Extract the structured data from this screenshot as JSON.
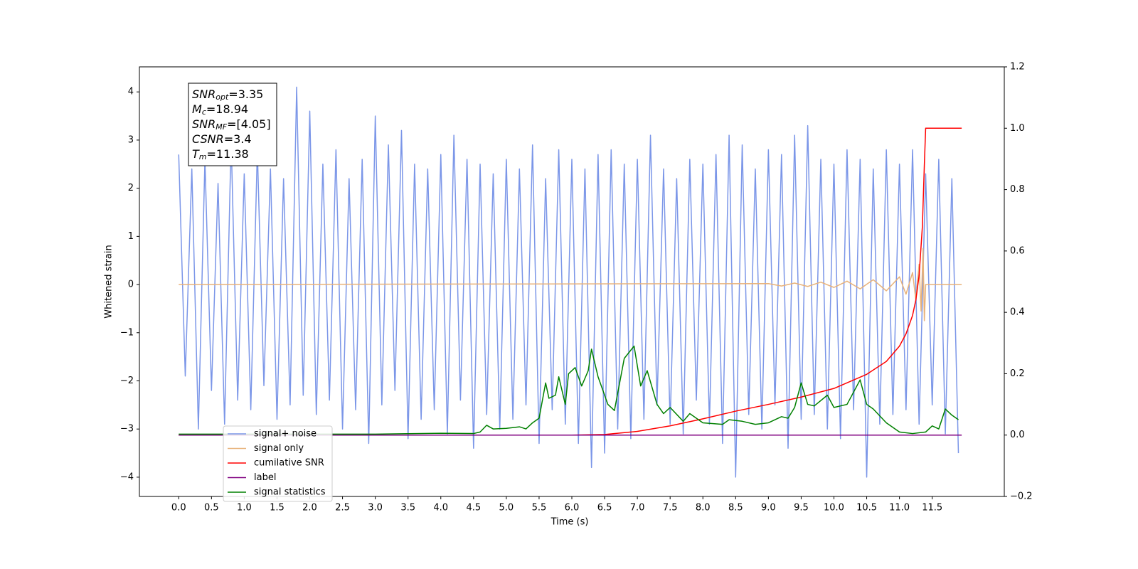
{
  "chart_data": {
    "type": "line",
    "xlabel": "Time (s)",
    "ylabel": "Whitened strain",
    "xlim": [
      -0.6,
      12.6
    ],
    "ylim": [
      -4.4,
      4.52
    ],
    "y2lim": [
      -0.2,
      1.2
    ],
    "xticks": [
      {
        "value": 0,
        "label": "0.0"
      },
      0.5,
      {
        "value": 1,
        "label": "1.0"
      },
      1.5,
      {
        "value": 2,
        "label": "2.0"
      },
      2.5,
      {
        "value": 3,
        "label": "3.0"
      },
      3.5,
      {
        "value": 4,
        "label": "4.0"
      },
      4.5,
      {
        "value": 5,
        "label": "5.0"
      },
      5.5,
      {
        "value": 6,
        "label": "6.0"
      },
      6.5,
      {
        "value": 7,
        "label": "7.0"
      },
      7.5,
      {
        "value": 8,
        "label": "8.0"
      },
      8.5,
      {
        "value": 9,
        "label": "9.0"
      },
      9.5,
      {
        "value": 10,
        "label": "10.0"
      },
      10.5,
      {
        "value": 11,
        "label": "11.0"
      },
      11.5
    ],
    "yticks": [
      {
        "value": -4,
        "label": "−4"
      },
      {
        "value": -3,
        "label": "−3"
      },
      {
        "value": -2,
        "label": "−2"
      },
      {
        "value": -1,
        "label": "−1"
      },
      0,
      1,
      2,
      3,
      4
    ],
    "y2ticks": [
      {
        "value": -0.2,
        "label": "−0.2"
      },
      {
        "value": 0,
        "label": "0.0"
      },
      0.2,
      0.4,
      0.6,
      0.8,
      {
        "value": 1,
        "label": "1.0"
      },
      1.2
    ],
    "annotation": [
      {
        "symbol": "SNR",
        "subscript": "opt",
        "text": "=3.35"
      },
      {
        "symbol": "M",
        "subscript": "c",
        "text": "=18.94"
      },
      {
        "symbol": "SNR",
        "subscript": "MF",
        "text": "=[4.05]"
      },
      {
        "symbol": "CSNR",
        "text": "=3.4"
      },
      {
        "symbol": "T",
        "subscript": "m",
        "text": "=11.38"
      }
    ],
    "series": [
      {
        "name": "signal+ noise",
        "color": "#7b96e8",
        "x": [
          0,
          0.1,
          0.2,
          0.3,
          0.4,
          0.5,
          0.6,
          0.7,
          0.8,
          0.9,
          1,
          1.1,
          1.2,
          1.3,
          1.4,
          1.5,
          1.6,
          1.7,
          1.8,
          1.9,
          2,
          2.1,
          2.2,
          2.3,
          2.4,
          2.5,
          2.6,
          2.7,
          2.8,
          2.9,
          3,
          3.1,
          3.2,
          3.3,
          3.4,
          3.5,
          3.6,
          3.7,
          3.8,
          3.9,
          4,
          4.1,
          4.2,
          4.3,
          4.4,
          4.5,
          4.6,
          4.7,
          4.8,
          4.9,
          5,
          5.1,
          5.2,
          5.3,
          5.4,
          5.5,
          5.6,
          5.7,
          5.8,
          5.9,
          6,
          6.1,
          6.2,
          6.3,
          6.4,
          6.5,
          6.6,
          6.7,
          6.8,
          6.9,
          7,
          7.1,
          7.2,
          7.3,
          7.4,
          7.5,
          7.6,
          7.7,
          7.8,
          7.9,
          8,
          8.1,
          8.2,
          8.3,
          8.4,
          8.5,
          8.6,
          8.7,
          8.8,
          8.9,
          9,
          9.1,
          9.2,
          9.3,
          9.4,
          9.5,
          9.6,
          9.7,
          9.8,
          9.9,
          10,
          10.1,
          10.2,
          10.3,
          10.4,
          10.5,
          10.6,
          10.7,
          10.8,
          10.9,
          11,
          11.1,
          11.2,
          11.3,
          11.4,
          11.5,
          11.6,
          11.7,
          11.8,
          11.9
        ],
        "values": [
          2.7,
          -1.9,
          2.4,
          -3.0,
          2.6,
          -2.2,
          2.1,
          -2.9,
          3.0,
          -2.4,
          2.3,
          -2.6,
          2.8,
          -2.1,
          2.4,
          -2.8,
          2.2,
          -2.5,
          4.1,
          -2.3,
          3.6,
          -2.7,
          2.5,
          -2.4,
          2.8,
          -3.0,
          2.2,
          -2.6,
          2.6,
          -3.3,
          3.5,
          -2.5,
          2.9,
          -2.2,
          3.2,
          -3.2,
          2.5,
          -2.8,
          2.4,
          -2.6,
          2.7,
          -3.1,
          3.1,
          -2.4,
          2.6,
          -3.4,
          2.5,
          -2.7,
          2.3,
          -3.0,
          2.6,
          -2.8,
          2.4,
          -2.5,
          2.9,
          -3.3,
          2.2,
          -2.6,
          2.8,
          -2.9,
          2.6,
          -3.3,
          2.4,
          -3.8,
          2.7,
          -3.5,
          2.8,
          -3.0,
          2.5,
          -3.2,
          2.6,
          -2.8,
          3.1,
          -2.5,
          2.4,
          -2.9,
          2.2,
          -3.1,
          2.6,
          -2.4,
          2.5,
          -2.9,
          2.7,
          -3.3,
          3.1,
          -4.0,
          2.9,
          -2.7,
          2.4,
          -3.0,
          2.8,
          -2.5,
          2.7,
          -3.4,
          3.1,
          -2.8,
          3.3,
          -2.7,
          2.6,
          -3.0,
          2.5,
          -3.2,
          2.8,
          -2.6,
          2.6,
          -4.0,
          2.4,
          -2.9,
          2.8,
          -2.7,
          2.5,
          -2.6,
          2.8,
          -2.9,
          2.3,
          -2.5,
          2.6,
          -3.1,
          2.2,
          -3.5
        ]
      },
      {
        "name": "signal only",
        "color": "#e8b27a",
        "x": [
          0,
          9.0,
          9.2,
          9.4,
          9.6,
          9.8,
          10.0,
          10.2,
          10.4,
          10.6,
          10.8,
          11.0,
          11.1,
          11.2,
          11.25,
          11.3,
          11.33,
          11.36,
          11.38,
          11.4,
          11.95
        ],
        "values": [
          0,
          0.02,
          -0.03,
          0.03,
          -0.04,
          0.05,
          -0.06,
          0.07,
          -0.09,
          0.1,
          -0.13,
          0.16,
          -0.2,
          0.25,
          -0.32,
          0.42,
          -0.55,
          0.75,
          -0.75,
          0,
          0
        ]
      },
      {
        "name": "cumilative SNR",
        "color": "#ff0000",
        "axis": "y2",
        "x": [
          0,
          6.0,
          6.5,
          7.0,
          7.5,
          8.0,
          8.5,
          9.0,
          9.5,
          10.0,
          10.5,
          10.8,
          11.0,
          11.1,
          11.2,
          11.25,
          11.3,
          11.35,
          11.38,
          11.4,
          11.95
        ],
        "values": [
          0,
          0,
          0.002,
          0.012,
          0.03,
          0.053,
          0.078,
          0.1,
          0.124,
          0.152,
          0.198,
          0.24,
          0.29,
          0.33,
          0.39,
          0.44,
          0.52,
          0.68,
          0.88,
          1.0,
          1.0
        ]
      },
      {
        "name": "label",
        "color": "#800080",
        "axis": "y2",
        "x": [
          0,
          11.95
        ],
        "values": [
          0,
          0
        ]
      },
      {
        "name": "signal statistics",
        "color": "#008000",
        "axis": "y2",
        "x": [
          0,
          1,
          2,
          3,
          4,
          4.5,
          4.6,
          4.7,
          4.8,
          5.0,
          5.2,
          5.3,
          5.4,
          5.5,
          5.6,
          5.65,
          5.75,
          5.8,
          5.9,
          5.95,
          6.05,
          6.15,
          6.25,
          6.3,
          6.4,
          6.55,
          6.65,
          6.8,
          6.95,
          7.05,
          7.15,
          7.3,
          7.4,
          7.5,
          7.7,
          7.8,
          8.0,
          8.3,
          8.4,
          8.6,
          8.8,
          9.0,
          9.2,
          9.3,
          9.4,
          9.5,
          9.6,
          9.7,
          9.9,
          10.0,
          10.2,
          10.4,
          10.5,
          10.6,
          10.8,
          11.0,
          11.2,
          11.4,
          11.5,
          11.6,
          11.7,
          11.8,
          11.9
        ],
        "values": [
          0.003,
          0.003,
          0.003,
          0.003,
          0.006,
          0.005,
          0.01,
          0.032,
          0.02,
          0.022,
          0.027,
          0.02,
          0.04,
          0.055,
          0.17,
          0.12,
          0.13,
          0.19,
          0.1,
          0.2,
          0.22,
          0.16,
          0.21,
          0.28,
          0.19,
          0.1,
          0.08,
          0.25,
          0.29,
          0.16,
          0.21,
          0.1,
          0.07,
          0.09,
          0.045,
          0.07,
          0.04,
          0.035,
          0.05,
          0.045,
          0.035,
          0.04,
          0.06,
          0.055,
          0.09,
          0.17,
          0.1,
          0.095,
          0.13,
          0.09,
          0.1,
          0.18,
          0.1,
          0.085,
          0.04,
          0.01,
          0.005,
          0.01,
          0.03,
          0.02,
          0.085,
          0.065,
          0.05
        ]
      }
    ]
  }
}
